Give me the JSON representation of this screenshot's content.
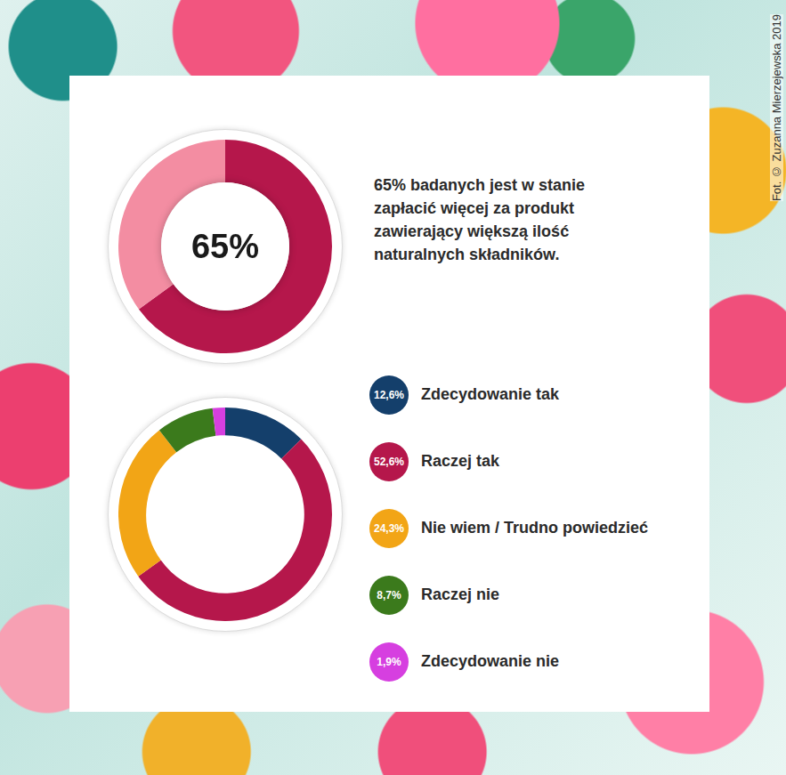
{
  "chart_data": [
    {
      "type": "doughnut",
      "center_text": "65%",
      "annotation": "65% badanych jest w stanie zapłacić więcej za produkt zawierający większą ilość naturalnych składników.",
      "values": [
        65,
        35
      ],
      "colors": [
        "#b5174b",
        "#f38da2"
      ]
    },
    {
      "type": "doughnut",
      "categories": [
        "Zdecydowanie tak",
        "Raczej tak",
        "Nie wiem / Trudno powiedzieć",
        "Raczej nie",
        "Zdecydowanie nie"
      ],
      "values": [
        12.6,
        52.6,
        24.3,
        8.7,
        1.9
      ],
      "value_labels": [
        "12,6%",
        "52,6%",
        "24,3%",
        "8,7%",
        "1,9%"
      ],
      "colors": [
        "#143f6b",
        "#b5174b",
        "#f2a516",
        "#3b7a1c",
        "#d63fe0"
      ],
      "legend": "right"
    }
  ],
  "credit": "Fot. © Zuzanna Mierzejewska 2019"
}
